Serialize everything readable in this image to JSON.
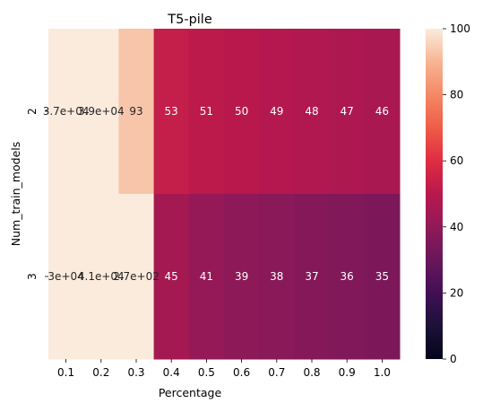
{
  "chart_data": {
    "type": "heatmap",
    "title": "T5-pile",
    "xlabel": "Percentage",
    "ylabel": "Num_train_models",
    "x_categories": [
      "0.1",
      "0.2",
      "0.3",
      "0.4",
      "0.5",
      "0.6",
      "0.7",
      "0.8",
      "0.9",
      "1.0"
    ],
    "y_categories": [
      "2",
      "3"
    ],
    "values": [
      [
        37000,
        39000,
        93,
        53,
        51,
        50,
        49,
        48,
        47,
        46
      ],
      [
        30000,
        41000,
        270,
        45,
        41,
        39,
        38,
        37,
        36,
        35
      ]
    ],
    "annotations": [
      [
        "3.7e+04",
        "3.9e+04",
        "93",
        "53",
        "51",
        "50",
        "49",
        "48",
        "47",
        "46"
      ],
      [
        "3e+04",
        "4.1e+04",
        "2.7e+02",
        "45",
        "41",
        "39",
        "38",
        "37",
        "36",
        "35"
      ]
    ],
    "colorbar": {
      "vmin": 0,
      "vmax": 100,
      "ticks": [
        "0",
        "20",
        "40",
        "60",
        "80",
        "100"
      ],
      "colormap": "rocket"
    }
  }
}
